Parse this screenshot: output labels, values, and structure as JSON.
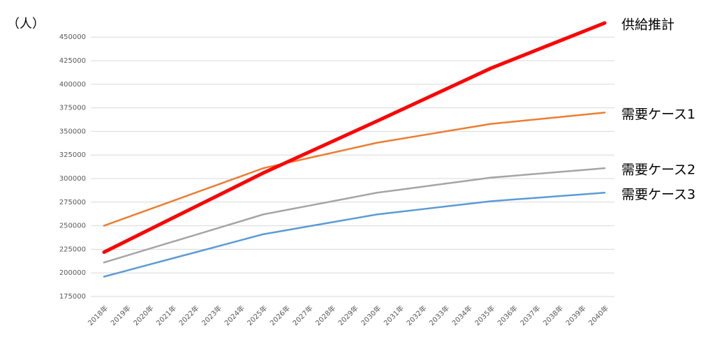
{
  "chart_data": {
    "type": "line",
    "unit_label": "（人）",
    "categories": [
      "2018年",
      "2019年",
      "2020年",
      "2021年",
      "2022年",
      "2023年",
      "2024年",
      "2025年",
      "2026年",
      "2027年",
      "2028年",
      "2029年",
      "2030年",
      "2031年",
      "2032年",
      "2033年",
      "2034年",
      "2035年",
      "2036年",
      "2037年",
      "2038年",
      "2039年",
      "2040年"
    ],
    "series": [
      {
        "name": "供給推計",
        "color": "#ff0000",
        "width": 5,
        "values": [
          222000,
          234000,
          246000,
          258000,
          270000,
          282000,
          294000,
          306000,
          317000,
          328000,
          339000,
          350000,
          361000,
          372200,
          383400,
          394600,
          405800,
          417000,
          426600,
          436200,
          445800,
          455400,
          465000
        ]
      },
      {
        "name": "需要ケース1",
        "color": "#ed7d31",
        "width": 2.5,
        "values": [
          250000,
          258700,
          267400,
          276100,
          284900,
          293600,
          302300,
          311000,
          316400,
          321800,
          327200,
          332600,
          338000,
          342000,
          346000,
          350000,
          354000,
          358000,
          360400,
          362800,
          365200,
          367600,
          370000
        ]
      },
      {
        "name": "需要ケース2",
        "color": "#a5a5a5",
        "width": 2.5,
        "values": [
          211000,
          218300,
          225600,
          232900,
          240100,
          247400,
          254700,
          262000,
          266600,
          271200,
          275800,
          280400,
          285000,
          288200,
          291400,
          294600,
          297800,
          301000,
          303000,
          305000,
          307000,
          309000,
          311000
        ]
      },
      {
        "name": "需要ケース3",
        "color": "#5b9bd5",
        "width": 2.5,
        "values": [
          196000,
          202400,
          208900,
          215300,
          221700,
          228100,
          234600,
          241000,
          245200,
          249400,
          253600,
          257800,
          262000,
          264800,
          267600,
          270400,
          273200,
          276000,
          277800,
          279600,
          281400,
          283200,
          285000
        ]
      }
    ],
    "ylim": [
      175000,
      470000
    ],
    "yticks": [
      175000,
      200000,
      225000,
      250000,
      275000,
      300000,
      325000,
      350000,
      375000,
      400000,
      425000,
      450000
    ],
    "grid": true
  }
}
